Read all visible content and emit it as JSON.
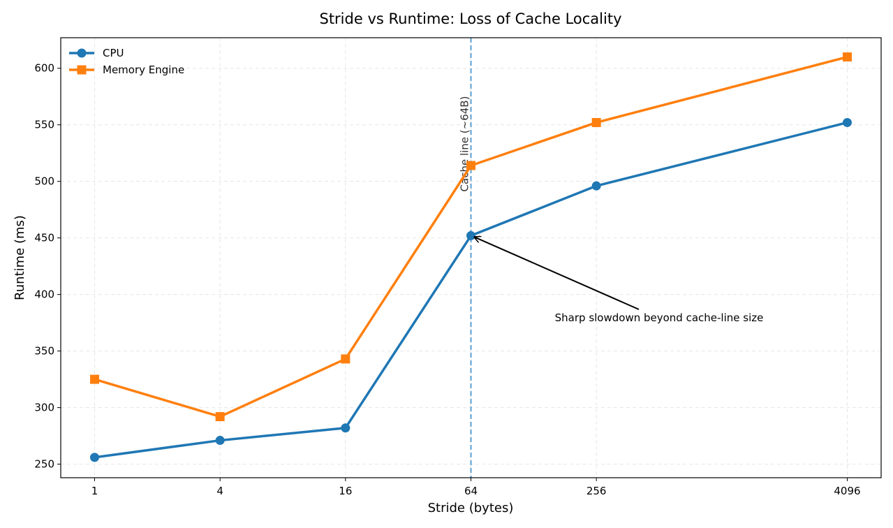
{
  "chart_data": {
    "type": "line",
    "title": "Stride vs Runtime: Loss of Cache Locality",
    "xlabel": "Stride (bytes)",
    "ylabel": "Runtime (ms)",
    "x_scale": "log2",
    "categories": [
      "1",
      "4",
      "16",
      "64",
      "256",
      "4096"
    ],
    "x": [
      1,
      4,
      16,
      64,
      256,
      4096
    ],
    "ylim": [
      238,
      627
    ],
    "yticks": [
      250,
      300,
      350,
      400,
      450,
      500,
      550,
      600
    ],
    "grid": true,
    "legend_position": "top-left",
    "series": [
      {
        "name": "CPU",
        "color": "#1f77b4",
        "marker": "circle",
        "values": [
          256,
          271,
          282,
          452,
          496,
          552
        ]
      },
      {
        "name": "Memory Engine",
        "color": "#ff7f0e",
        "marker": "square",
        "values": [
          325,
          292,
          343,
          514,
          552,
          610
        ]
      }
    ],
    "vline": {
      "x": 64,
      "label": "Cache line (~64B)",
      "color": "#5a9fd4"
    },
    "annotation": {
      "text": "Sharp slowdown beyond cache-line size",
      "x": 64,
      "y": 452
    }
  }
}
